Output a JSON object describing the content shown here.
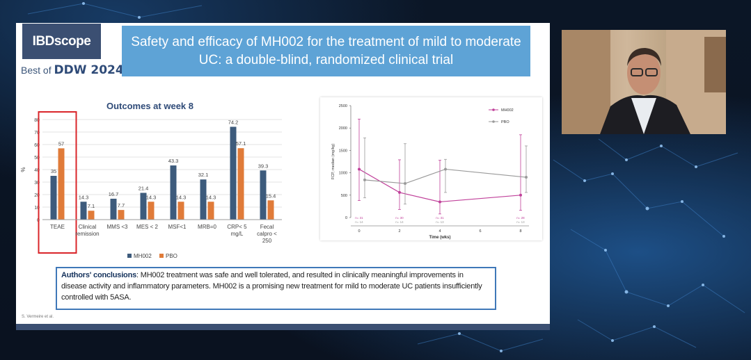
{
  "slide": {
    "logo_text": "IBDscope",
    "best_of": "Best of",
    "best_of_event": "DDW 2024",
    "title": "Safety and efficacy of MH002 for the treatment of mild to moderate UC: a double-blind, randomized clinical trial",
    "reference": "S. Vermeire et al.",
    "conclusion_lead": "Authors' conclusions",
    "conclusion_text": ": MH002 treatment was safe and well tolerated, and resulted in clinically meaningful improvements in disease activity and inflammatory parameters. MH002 is a promising new treatment for mild to moderate UC patients insufficiently controlled with 5ASA."
  },
  "colors": {
    "mh002_bar": "#3d5b7c",
    "pbo_bar": "#e07b39",
    "highlight_box": "#d9252a",
    "mh002_line": "#c0409a",
    "pbo_line": "#9a9a9a",
    "title_bg": "#5ea3d6",
    "logo_bg": "#3b4f72"
  },
  "chart_data": [
    {
      "type": "bar",
      "title": "Outcomes at week 8",
      "xlabel": "",
      "ylabel": "%",
      "ylim": [
        0,
        80
      ],
      "yticks": [
        0,
        10,
        20,
        30,
        40,
        50,
        60,
        70,
        80
      ],
      "categories": [
        "TEAE",
        "Clinical remission",
        "MMS <3",
        "MES < 2",
        "MSF<1",
        "MRB=0",
        "CRP< 5 mg/L",
        "Fecal calpro < 250"
      ],
      "series": [
        {
          "name": "MH002",
          "values": [
            35,
            14.3,
            16.7,
            21.4,
            43.3,
            32.1,
            74.2,
            39.3
          ]
        },
        {
          "name": "PBO",
          "values": [
            57,
            7.1,
            7.7,
            14.3,
            14.3,
            14.3,
            57.1,
            15.4
          ]
        }
      ],
      "data_labels": {
        "MH002": [
          "35",
          "14.3",
          "16.7",
          "21.4",
          "43.3",
          "32.1",
          "74.2",
          "39.3"
        ],
        "PBO": [
          "57",
          "7.1",
          "7.7",
          "14.3",
          "14.3",
          "14.3",
          "57.1",
          "15.4"
        ]
      },
      "highlighted_category": "TEAE",
      "legend": "bottom"
    },
    {
      "type": "line",
      "title": "",
      "xlabel": "Time (wks)",
      "ylabel": "FCP, median (mg/kg)",
      "xlim": [
        0,
        8
      ],
      "ylim": [
        0,
        2500
      ],
      "xticks": [
        0,
        2,
        4,
        6,
        8
      ],
      "yticks": [
        0,
        500,
        1000,
        1500,
        2000,
        2500
      ],
      "x": [
        0,
        2,
        4,
        8
      ],
      "series": [
        {
          "name": "MH002",
          "values": [
            1080,
            560,
            350,
            500
          ],
          "err_low": [
            380,
            180,
            80,
            160
          ],
          "err_high": [
            2200,
            1290,
            1280,
            1850
          ]
        },
        {
          "name": "PBO",
          "values": [
            840,
            760,
            1080,
            900
          ],
          "err_low": [
            440,
            300,
            560,
            560
          ],
          "err_high": [
            1780,
            1650,
            1300,
            1600
          ]
        }
      ],
      "n_at_risk": {
        "MH002": [
          "n= 31",
          "n= 30",
          "n= 31",
          "n= 28"
        ],
        "PBO": [
          "n= 14",
          "n= 14",
          "n= 13",
          "n= 13"
        ]
      },
      "legend": "top-right"
    }
  ]
}
